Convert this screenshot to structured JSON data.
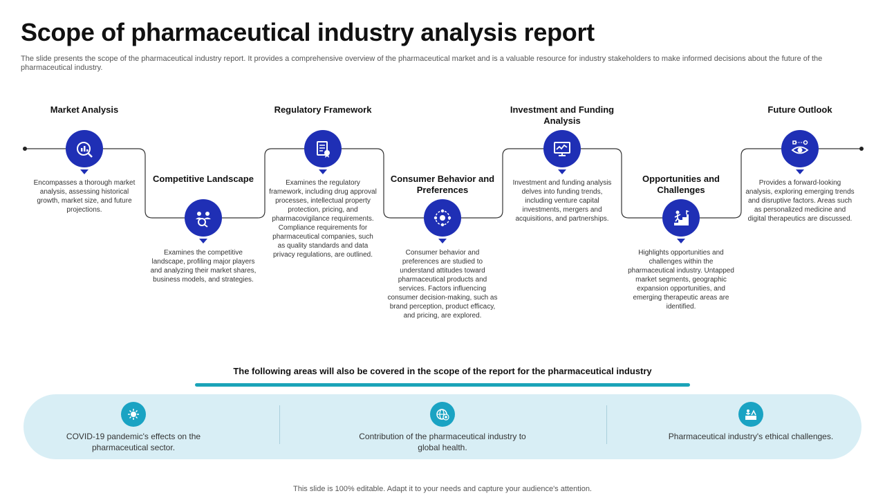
{
  "title": "Scope of pharmaceutical industry analysis report",
  "subtitle": "The slide presents the scope of the pharmaceutical industry report. It provides a comprehensive overview of the pharmaceutical market and is a valuable resource for industry stakeholders to make informed decisions about the future of the pharmaceutical industry.",
  "steps": [
    {
      "label": "Market Analysis",
      "icon": "market-analysis-icon",
      "description": "Encompasses a thorough market analysis, assessing historical growth, market size, and future projections."
    },
    {
      "label": "Competitive Landscape",
      "icon": "competitive-landscape-icon",
      "description": "Examines the competitive landscape, profiling major players and analyzing their market shares, business models, and strategies."
    },
    {
      "label": "Regulatory Framework",
      "icon": "regulatory-document-icon",
      "description": "Examines the regulatory framework, including drug approval processes, intellectual property protection, pricing, and pharmacovigilance requirements. Compliance requirements for pharmaceutical companies, such as quality standards and data privacy regulations, are outlined."
    },
    {
      "label": "Consumer Behavior and Preferences",
      "icon": "consumer-network-icon",
      "description": "Consumer behavior and preferences are studied to understand attitudes toward pharmaceutical products and services. Factors influencing consumer decision-making, such as brand perception, product efficacy, and pricing, are explored."
    },
    {
      "label": "Investment and Funding Analysis",
      "icon": "monitor-chart-icon",
      "description": "Investment and funding analysis delves into funding trends, including venture capital investments, mergers and acquisitions, and partnerships."
    },
    {
      "label": "Opportunities and Challenges",
      "icon": "climbing-stairs-icon",
      "description": "Highlights opportunities and challenges within the pharmaceutical industry. Untapped market segments, geographic expansion opportunities, and emerging therapeutic areas are identified."
    },
    {
      "label": "Future Outlook",
      "icon": "vision-eye-icon",
      "description": "Provides a forward-looking analysis, exploring emerging trends and disruptive factors. Areas such as personalized medicine and digital therapeutics are discussed."
    }
  ],
  "areas_heading": "The following areas will also be covered in the scope of the report for the pharmaceutical industry",
  "areas": [
    {
      "text": "COVID-19 pandemic's effects on the pharmaceutical sector.",
      "icon": "virus-icon"
    },
    {
      "text": "Contribution of the pharmaceutical industry to global health.",
      "icon": "globe-health-icon"
    },
    {
      "text": "Pharmaceutical industry's ethical challenges.",
      "icon": "ethics-icon"
    }
  ],
  "footer": "This slide is 100% editable. Adapt it to your needs and capture your audience's attention.",
  "colors": {
    "primary": "#1f2fb5",
    "accent": "#1aa3b8",
    "panel": "#d8eef5"
  }
}
